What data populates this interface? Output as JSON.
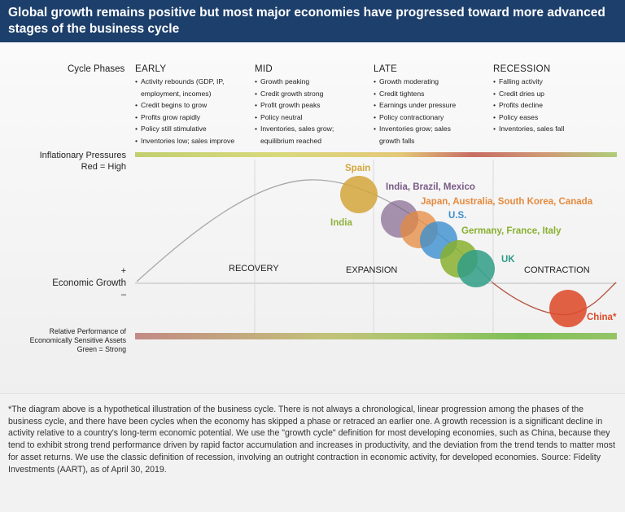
{
  "header": {
    "title": "Global growth remains positive but most major economies have progressed toward more advanced stages of the business cycle"
  },
  "phases": {
    "row_label": "Cycle Phases",
    "early": {
      "title": "EARLY",
      "items": [
        "Activity rebounds (GDP, IP,",
        "employment, incomes)",
        "Credit begins to grow",
        "Profits grow rapidly",
        "Policy still stimulative",
        "Inventories low; sales improve"
      ]
    },
    "mid": {
      "title": "MID",
      "items": [
        "Growth peaking",
        "Credit growth strong",
        "Profit growth peaks",
        "Policy neutral",
        "Inventories, sales grow;",
        "equilibrium reached"
      ]
    },
    "late": {
      "title": "LATE",
      "items": [
        "Growth moderating",
        "Credit tightens",
        "Earnings under pressure",
        "Policy contractionary",
        "Inventories grow; sales",
        "growth falls"
      ]
    },
    "recession": {
      "title": "RECESSION",
      "items": [
        "Falling activity",
        "Credit dries up",
        "Profits decline",
        "Policy eases",
        "Inventories, sales fall"
      ]
    }
  },
  "side_labels": {
    "inflation_line1": "Inflationary Pressures",
    "inflation_line2": "Red = High",
    "plus": "+",
    "economic_growth": "Economic Growth",
    "minus": "–",
    "relative_line1": "Relative Performance of",
    "relative_line2": "Economically Sensitive Assets",
    "relative_line3": "Green = Strong"
  },
  "stages": {
    "recovery": "RECOVERY",
    "expansion": "EXPANSION",
    "contraction": "CONTRACTION"
  },
  "countries": [
    {
      "key": "spain",
      "label": "Spain",
      "color": "#d4a53a"
    },
    {
      "key": "india",
      "label": "India",
      "color": "#8fb23a"
    },
    {
      "key": "ibm",
      "label": "India, Brazil, Mexico",
      "color": "#7a5a86"
    },
    {
      "key": "japan",
      "label": "Japan, Australia, South Korea, Canada",
      "color": "#e58a3e"
    },
    {
      "key": "us",
      "label": "U.S.",
      "color": "#3b8fcf"
    },
    {
      "key": "germany",
      "label": "Germany, France, Italy",
      "color": "#88b02f"
    },
    {
      "key": "uk",
      "label": "UK",
      "color": "#2f9c86"
    },
    {
      "key": "china",
      "label": "China*",
      "color": "#dd4b2b"
    }
  ],
  "footer": {
    "text": "*The diagram above is a hypothetical illustration of the business cycle. There is not always a chronological, linear progression among the phases of the business cycle, and there have been cycles when the economy has skipped a phase or retraced an earlier one. A growth recession is a significant decline in activity relative to a country's long-term economic potential. We use the \"growth cycle\" definition for most developing economies, such as China, because they tend to exhibit strong trend performance driven by rapid factor accumulation and increases in productivity, and the deviation from the trend tends to matter most for asset returns. We use the classic definition of recession, involving an outright contraction in economic activity, for developed economies. Source: Fidelity Investments (AART), as of April 30, 2019."
  }
}
